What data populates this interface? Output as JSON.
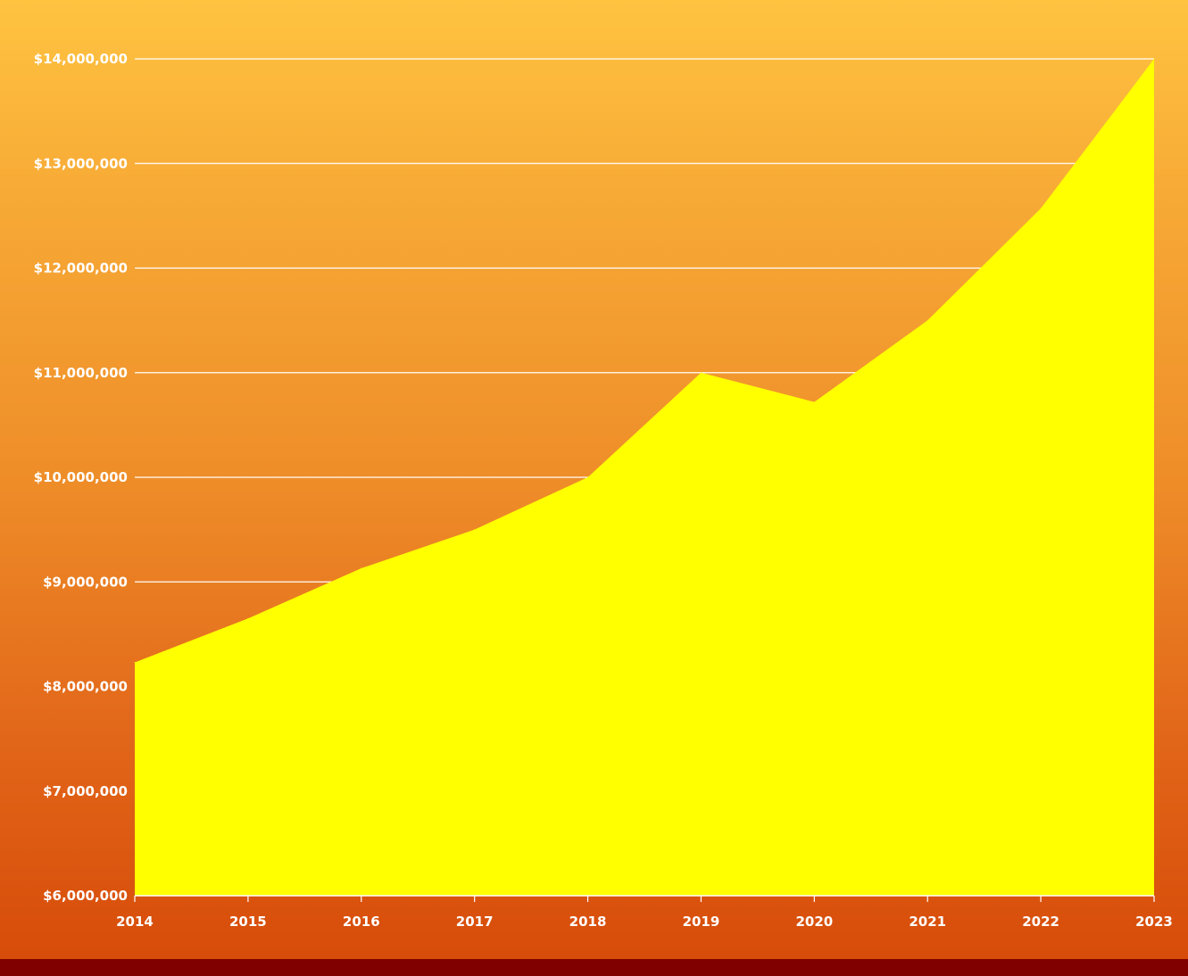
{
  "chart_data": {
    "type": "area",
    "x": [
      "2014",
      "2015",
      "2016",
      "2017",
      "2018",
      "2019",
      "2020",
      "2021",
      "2022",
      "2023"
    ],
    "values": [
      8230000,
      8650000,
      9130000,
      9500000,
      10000000,
      11000000,
      10720000,
      11500000,
      12570000,
      14000000
    ],
    "ylim": [
      6000000,
      14000000
    ],
    "yticks": [
      6000000,
      7000000,
      8000000,
      9000000,
      10000000,
      11000000,
      12000000,
      13000000,
      14000000
    ],
    "ytick_labels": [
      "$6,000,000",
      "$7,000,000",
      "$8,000,000",
      "$9,000,000",
      "$10,000,000",
      "$11,000,000",
      "$12,000,000",
      "$13,000,000",
      "$14,000,000"
    ],
    "title": "",
    "xlabel": "",
    "ylabel": "",
    "grid": true,
    "colors": {
      "fill": "#ffff00",
      "gridline": "#ffffff",
      "axis": "#ffffff",
      "tick_text": "#ffffff",
      "bottom_bar": "#800000"
    }
  }
}
